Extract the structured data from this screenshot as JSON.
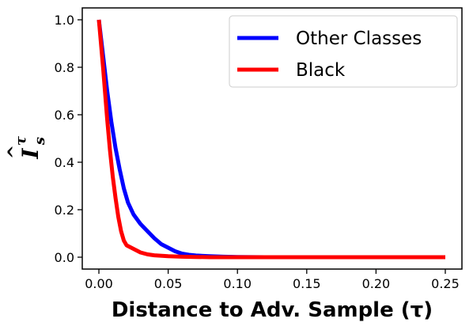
{
  "chart_data": {
    "type": "line",
    "title": "",
    "xlabel": "Distance to Adv. Sample (τ)",
    "ylabel": "Îˢᵀ",
    "ylabel_parts": {
      "base": "I",
      "hat": "^",
      "sub": "s",
      "sup": "τ"
    },
    "xlim": [
      -0.012,
      0.262
    ],
    "ylim": [
      -0.05,
      1.05
    ],
    "xticks": [
      0.0,
      0.05,
      0.1,
      0.15,
      0.2,
      0.25
    ],
    "xtick_labels": [
      "0.00",
      "0.05",
      "0.10",
      "0.15",
      "0.20",
      "0.25"
    ],
    "yticks": [
      0.0,
      0.2,
      0.4,
      0.6,
      0.8,
      1.0
    ],
    "ytick_labels": [
      "0.0",
      "0.2",
      "0.4",
      "0.6",
      "0.8",
      "1.0"
    ],
    "grid": false,
    "legend_position": "top-right",
    "series": [
      {
        "name": "Other Classes",
        "color": "#0000ff",
        "x": [
          0.0,
          0.003,
          0.006,
          0.009,
          0.012,
          0.015,
          0.018,
          0.021,
          0.025,
          0.03,
          0.035,
          0.04,
          0.045,
          0.05,
          0.055,
          0.06,
          0.065,
          0.07,
          0.08,
          0.09,
          0.1,
          0.12,
          0.15,
          0.2,
          0.25
        ],
        "y": [
          1.0,
          0.85,
          0.7,
          0.57,
          0.46,
          0.37,
          0.29,
          0.23,
          0.18,
          0.14,
          0.11,
          0.08,
          0.055,
          0.04,
          0.025,
          0.015,
          0.01,
          0.007,
          0.004,
          0.002,
          0.001,
          0.0,
          0.0,
          0.0,
          0.0
        ]
      },
      {
        "name": "Black",
        "color": "#ff0000",
        "x": [
          0.0,
          0.003,
          0.006,
          0.008,
          0.01,
          0.012,
          0.014,
          0.016,
          0.018,
          0.02,
          0.025,
          0.03,
          0.035,
          0.04,
          0.05,
          0.06,
          0.07,
          0.08,
          0.1,
          0.15,
          0.2,
          0.25
        ],
        "y": [
          1.0,
          0.8,
          0.58,
          0.45,
          0.34,
          0.25,
          0.17,
          0.11,
          0.07,
          0.05,
          0.035,
          0.02,
          0.012,
          0.008,
          0.004,
          0.002,
          0.001,
          0.0,
          0.0,
          0.0,
          0.0,
          0.0
        ]
      }
    ]
  }
}
